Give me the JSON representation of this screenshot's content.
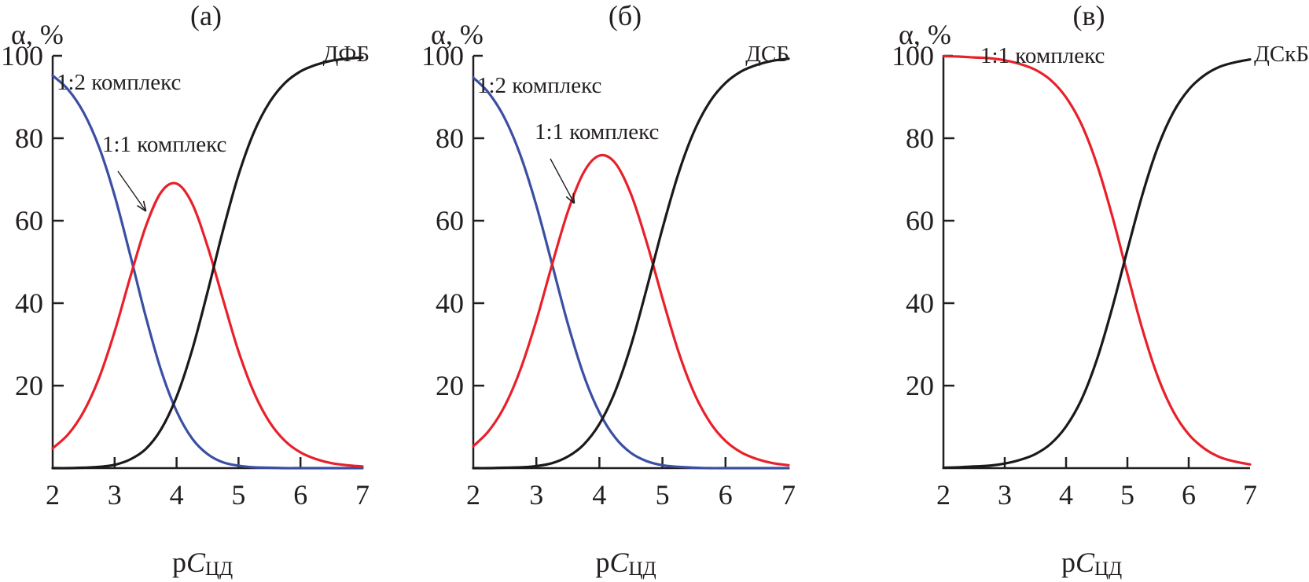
{
  "chart_data": [
    {
      "type": "line",
      "title": "(а)",
      "ylabel": "α, %",
      "xlabel": {
        "main": "p",
        "italic": "C",
        "sub": "ЦД"
      },
      "xlim": [
        2,
        7
      ],
      "ylim": [
        0,
        100
      ],
      "xticks": [
        "2",
        "3",
        "4",
        "5",
        "6",
        "7"
      ],
      "yticks": [
        "20",
        "40",
        "60",
        "80",
        "100"
      ],
      "grid": false,
      "x": [
        2,
        2.25,
        2.5,
        2.75,
        3,
        3.25,
        3.5,
        3.75,
        4,
        4.25,
        4.5,
        4.75,
        5,
        5.25,
        5.5,
        5.75,
        6,
        6.25,
        6.5,
        6.75,
        7
      ],
      "series": [
        {
          "name": "1:2 комплекс",
          "color": "#3a4fa3",
          "values": [
            95.2,
            91.8,
            86.2,
            77.8,
            66.1,
            51.8,
            36.9,
            23.7,
            13.8,
            7.2,
            3.4,
            1.4,
            0.6,
            0.2,
            0.1,
            0,
            0,
            0,
            0,
            0,
            0
          ]
        },
        {
          "name": "1:1 комплекс",
          "color": "#e8202a",
          "values": [
            4.8,
            8.2,
            13.7,
            21.9,
            33.1,
            46.2,
            58.5,
            66.9,
            69.0,
            64.2,
            53.8,
            40.9,
            28.3,
            18.3,
            11.2,
            6.6,
            3.8,
            2.2,
            1.2,
            0.7,
            0.4
          ]
        },
        {
          "name": "ДФБ",
          "color": "#1a1a1a",
          "values": [
            0,
            0,
            0.1,
            0.3,
            0.8,
            2.1,
            4.6,
            9.4,
            17.3,
            28.6,
            42.7,
            57.7,
            71.1,
            81.5,
            88.7,
            93.4,
            96.2,
            97.8,
            98.8,
            99.3,
            99.6
          ]
        }
      ],
      "annotations": [
        "1:2 комплекс",
        "1:1 комплекс",
        "ДФБ"
      ]
    },
    {
      "type": "line",
      "title": "(б)",
      "ylabel": "α, %",
      "xlabel": {
        "main": "p",
        "italic": "C",
        "sub": "ЦД"
      },
      "xlim": [
        2,
        7
      ],
      "ylim": [
        0,
        100
      ],
      "xticks": [
        "2",
        "3",
        "4",
        "5",
        "6",
        "7"
      ],
      "yticks": [
        "20",
        "40",
        "60",
        "80",
        "100"
      ],
      "grid": false,
      "x": [
        2,
        2.25,
        2.5,
        2.75,
        3,
        3.25,
        3.5,
        3.75,
        4,
        4.25,
        4.5,
        4.75,
        5,
        5.25,
        5.5,
        5.75,
        6,
        6.25,
        6.5,
        6.75,
        7
      ],
      "series": [
        {
          "name": "1:2 комплекс",
          "color": "#3a4fa3",
          "values": [
            94.7,
            90.9,
            84.8,
            75.8,
            63.7,
            49.4,
            35.0,
            22.6,
            13.5,
            7.4,
            3.7,
            1.7,
            0.7,
            0.3,
            0.1,
            0,
            0,
            0,
            0,
            0,
            0
          ]
        },
        {
          "name": "1:1 комплекс",
          "color": "#e8202a",
          "values": [
            5.3,
            9.1,
            15.1,
            24.0,
            35.8,
            49.4,
            62.2,
            71.7,
            75.8,
            74.0,
            66.5,
            54.8,
            41.2,
            28.4,
            18.3,
            11.2,
            6.6,
            3.8,
            2.2,
            1.2,
            0.7
          ]
        },
        {
          "name": "ДСБ",
          "color": "#1a1a1a",
          "values": [
            0,
            0,
            0.1,
            0.2,
            0.5,
            1.2,
            2.8,
            5.7,
            10.7,
            18.6,
            29.7,
            43.5,
            58.1,
            71.3,
            81.6,
            88.8,
            93.4,
            96.2,
            97.8,
            98.8,
            99.3
          ]
        }
      ],
      "annotations": [
        "1:2 комплекс",
        "1:1 комплекс",
        "ДСБ"
      ]
    },
    {
      "type": "line",
      "title": "(в)",
      "ylabel": "α, %",
      "xlabel": {
        "main": "p",
        "italic": "C",
        "sub": "ЦД"
      },
      "xlim": [
        2,
        7
      ],
      "ylim": [
        0,
        100
      ],
      "xticks": [
        "2",
        "3",
        "4",
        "5",
        "6",
        "7"
      ],
      "yticks": [
        "20",
        "40",
        "60",
        "80",
        "100"
      ],
      "grid": false,
      "x": [
        2,
        2.25,
        2.5,
        2.75,
        3,
        3.25,
        3.5,
        3.75,
        4,
        4.25,
        4.5,
        4.75,
        5,
        5.25,
        5.5,
        5.75,
        6,
        6.25,
        6.5,
        6.75,
        7
      ],
      "series": [
        {
          "name": "1:1 комплекс",
          "color": "#e8202a",
          "values": [
            99.9,
            99.8,
            99.6,
            99.4,
            98.9,
            98.0,
            96.6,
            94.1,
            89.9,
            83.4,
            73.8,
            61.3,
            47.1,
            33.4,
            22.0,
            13.7,
            8.2,
            4.8,
            2.7,
            1.6,
            0.9
          ]
        },
        {
          "name": "ДСкБ",
          "color": "#1a1a1a",
          "values": [
            0.1,
            0.2,
            0.4,
            0.6,
            1.1,
            2.0,
            3.4,
            5.9,
            10.1,
            16.6,
            26.2,
            38.7,
            52.9,
            66.6,
            78.0,
            86.3,
            91.8,
            95.2,
            97.3,
            98.4,
            99.1
          ]
        }
      ],
      "annotations": [
        "1:1 комплекс",
        "ДСкБ"
      ]
    }
  ]
}
